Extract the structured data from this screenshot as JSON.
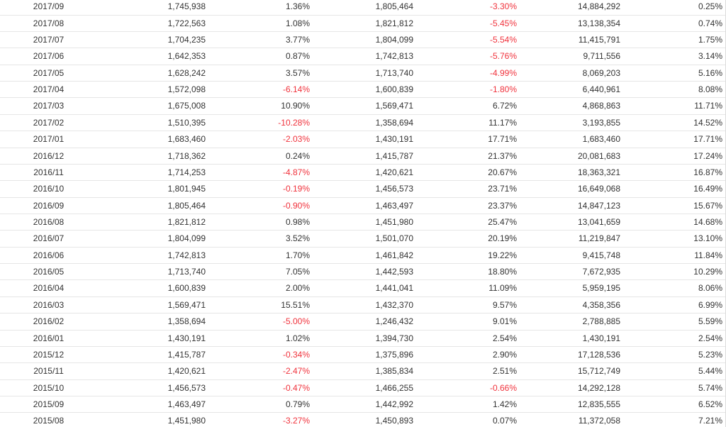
{
  "table": {
    "rows": [
      [
        "2017/09",
        "1,745,938",
        "1.36%",
        "1,805,464",
        "-3.30%",
        "14,884,292",
        "0.25%"
      ],
      [
        "2017/08",
        "1,722,563",
        "1.08%",
        "1,821,812",
        "-5.45%",
        "13,138,354",
        "0.74%"
      ],
      [
        "2017/07",
        "1,704,235",
        "3.77%",
        "1,804,099",
        "-5.54%",
        "11,415,791",
        "1.75%"
      ],
      [
        "2017/06",
        "1,642,353",
        "0.87%",
        "1,742,813",
        "-5.76%",
        "9,711,556",
        "3.14%"
      ],
      [
        "2017/05",
        "1,628,242",
        "3.57%",
        "1,713,740",
        "-4.99%",
        "8,069,203",
        "5.16%"
      ],
      [
        "2017/04",
        "1,572,098",
        "-6.14%",
        "1,600,839",
        "-1.80%",
        "6,440,961",
        "8.08%"
      ],
      [
        "2017/03",
        "1,675,008",
        "10.90%",
        "1,569,471",
        "6.72%",
        "4,868,863",
        "11.71%"
      ],
      [
        "2017/02",
        "1,510,395",
        "-10.28%",
        "1,358,694",
        "11.17%",
        "3,193,855",
        "14.52%"
      ],
      [
        "2017/01",
        "1,683,460",
        "-2.03%",
        "1,430,191",
        "17.71%",
        "1,683,460",
        "17.71%"
      ],
      [
        "2016/12",
        "1,718,362",
        "0.24%",
        "1,415,787",
        "21.37%",
        "20,081,683",
        "17.24%"
      ],
      [
        "2016/11",
        "1,714,253",
        "-4.87%",
        "1,420,621",
        "20.67%",
        "18,363,321",
        "16.87%"
      ],
      [
        "2016/10",
        "1,801,945",
        "-0.19%",
        "1,456,573",
        "23.71%",
        "16,649,068",
        "16.49%"
      ],
      [
        "2016/09",
        "1,805,464",
        "-0.90%",
        "1,463,497",
        "23.37%",
        "14,847,123",
        "15.67%"
      ],
      [
        "2016/08",
        "1,821,812",
        "0.98%",
        "1,451,980",
        "25.47%",
        "13,041,659",
        "14.68%"
      ],
      [
        "2016/07",
        "1,804,099",
        "3.52%",
        "1,501,070",
        "20.19%",
        "11,219,847",
        "13.10%"
      ],
      [
        "2016/06",
        "1,742,813",
        "1.70%",
        "1,461,842",
        "19.22%",
        "9,415,748",
        "11.84%"
      ],
      [
        "2016/05",
        "1,713,740",
        "7.05%",
        "1,442,593",
        "18.80%",
        "7,672,935",
        "10.29%"
      ],
      [
        "2016/04",
        "1,600,839",
        "2.00%",
        "1,441,041",
        "11.09%",
        "5,959,195",
        "8.06%"
      ],
      [
        "2016/03",
        "1,569,471",
        "15.51%",
        "1,432,370",
        "9.57%",
        "4,358,356",
        "6.99%"
      ],
      [
        "2016/02",
        "1,358,694",
        "-5.00%",
        "1,246,432",
        "9.01%",
        "2,788,885",
        "5.59%"
      ],
      [
        "2016/01",
        "1,430,191",
        "1.02%",
        "1,394,730",
        "2.54%",
        "1,430,191",
        "2.54%"
      ],
      [
        "2015/12",
        "1,415,787",
        "-0.34%",
        "1,375,896",
        "2.90%",
        "17,128,536",
        "5.23%"
      ],
      [
        "2015/11",
        "1,420,621",
        "-2.47%",
        "1,385,834",
        "2.51%",
        "15,712,749",
        "5.44%"
      ],
      [
        "2015/10",
        "1,456,573",
        "-0.47%",
        "1,466,255",
        "-0.66%",
        "14,292,128",
        "5.74%"
      ],
      [
        "2015/09",
        "1,463,497",
        "0.79%",
        "1,442,992",
        "1.42%",
        "12,835,555",
        "6.52%"
      ],
      [
        "2015/08",
        "1,451,980",
        "-3.27%",
        "1,450,893",
        "0.07%",
        "11,372,058",
        "7.21%"
      ]
    ]
  }
}
